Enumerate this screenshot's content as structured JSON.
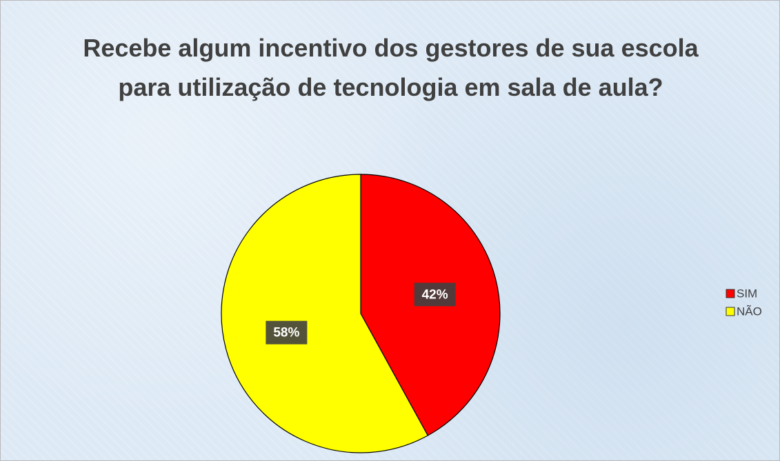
{
  "chart_data": {
    "type": "pie",
    "title": "Recebe algum incentivo dos gestores de sua escola para utilização de tecnologia em sala de aula?",
    "categories": [
      "SIM",
      "NÃO"
    ],
    "values": [
      42,
      58
    ],
    "value_labels": [
      "42%",
      "58%"
    ],
    "colors": [
      "#ff0000",
      "#ffff00"
    ],
    "legend": "right"
  }
}
